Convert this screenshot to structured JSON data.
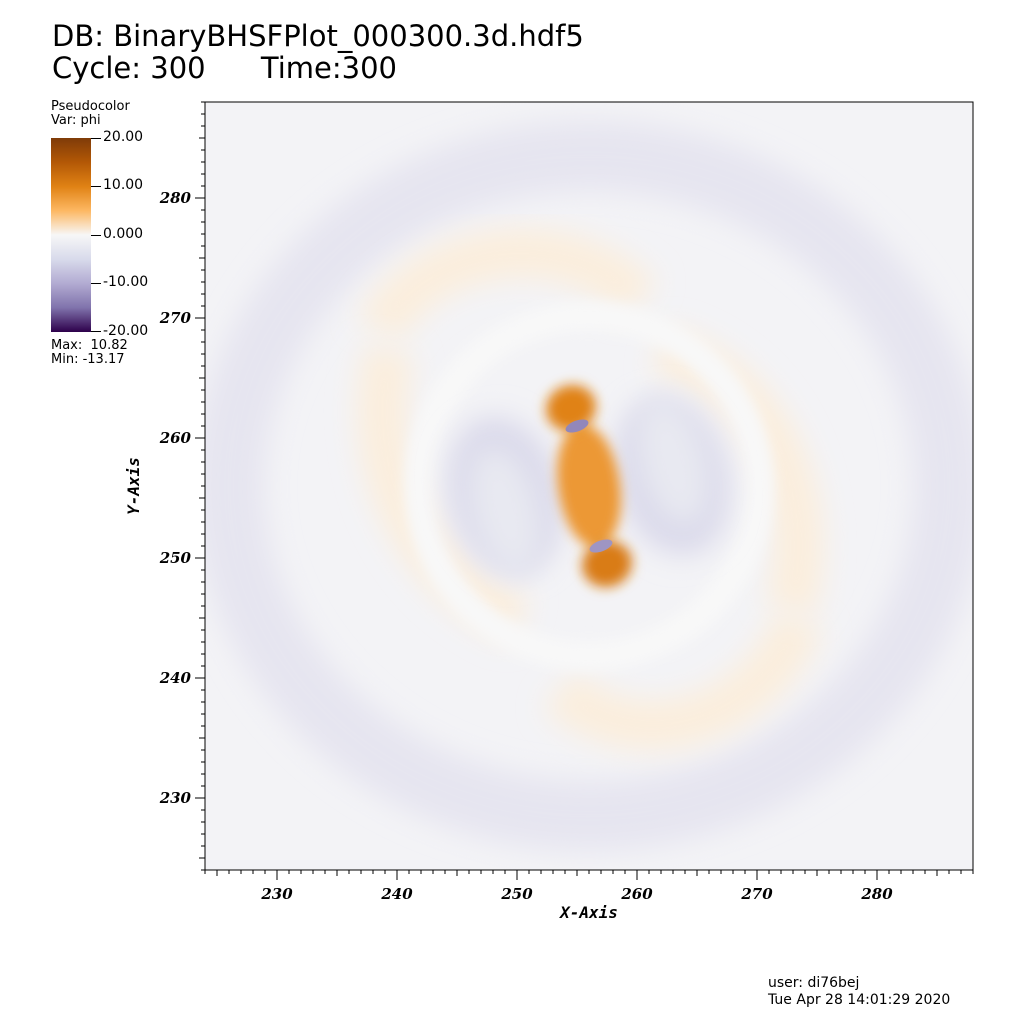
{
  "header": {
    "db_line": "DB: BinaryBHSFPlot_000300.3d.hdf5",
    "cycle_line": "Cycle: 300      Time:300"
  },
  "legend": {
    "plot_type": "Pseudocolor",
    "var_line": "Var: phi",
    "tick_labels": [
      "20.00",
      "10.00",
      "0.000",
      "-10.00",
      "-20.00"
    ],
    "max_line": "Max:  10.82",
    "min_line": "Min: -13.17",
    "colors": [
      "#7f3b08",
      "#b35806",
      "#e08214",
      "#fdb863",
      "#f7f7f7",
      "#d8daeb",
      "#b2abd2",
      "#8073ac",
      "#2d004b"
    ]
  },
  "footer": {
    "user_line": "user: di76bej",
    "date_line": "Tue Apr 28 14:01:29 2020"
  },
  "chart_data": {
    "type": "heatmap",
    "variable": "phi",
    "xlabel": "X-Axis",
    "ylabel": "Y-Axis",
    "xlim": [
      224,
      288
    ],
    "ylim": [
      224,
      288
    ],
    "x_ticks": [
      230,
      240,
      250,
      260,
      270,
      280
    ],
    "y_ticks": [
      230,
      240,
      250,
      260,
      270,
      280
    ],
    "colorbar_range": [
      -20,
      20
    ],
    "data_max": 10.82,
    "data_min": -13.17,
    "features": [
      {
        "kind": "positive_lobe",
        "x": 256,
        "y": 256,
        "value": 8
      },
      {
        "kind": "positive_lobe",
        "x": 254.5,
        "y": 262.5,
        "value": 10
      },
      {
        "kind": "positive_lobe",
        "x": 257.5,
        "y": 249.5,
        "value": 10.8
      },
      {
        "kind": "negative_spot",
        "x": 255,
        "y": 261,
        "value": -13.17
      },
      {
        "kind": "negative_spot",
        "x": 257,
        "y": 251,
        "value": -12
      },
      {
        "kind": "negative_lobe",
        "x": 249,
        "y": 254,
        "value": -2.5
      },
      {
        "kind": "negative_lobe",
        "x": 263,
        "y": 258,
        "value": -2.5
      }
    ]
  }
}
